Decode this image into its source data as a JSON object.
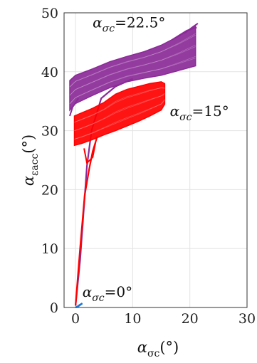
{
  "chart_data": {
    "type": "line",
    "title": "",
    "xlabel": {
      "greek": "α",
      "sub": "σc",
      "unit": "(°)"
    },
    "ylabel": {
      "greek": "α",
      "sub": "εacc",
      "unit": "(°)"
    },
    "xlim": [
      -2,
      30
    ],
    "ylim": [
      0,
      50
    ],
    "xticks": [
      "0",
      "10",
      "20",
      "30"
    ],
    "yticks": [
      "0",
      "10",
      "20",
      "30",
      "40",
      "50"
    ],
    "grid": true,
    "colors": {
      "purple": "#8b2a98",
      "red": "#ff0000",
      "blue": "#1f77d4"
    },
    "series": [
      {
        "annotation": {
          "greek": "α",
          "sub": "σc",
          "rest": "=22.5°",
          "x": 3.0,
          "y": 47.5
        },
        "color": "purple",
        "ramp": [
          [
            0,
            0.3
          ],
          [
            0.8,
            8
          ],
          [
            1.4,
            16
          ],
          [
            2.0,
            24
          ],
          [
            2.8,
            30
          ],
          [
            4.5,
            35.5
          ],
          [
            7,
            37.5
          ],
          [
            10,
            38.8
          ]
        ],
        "band": {
          "x": [
            -1.0,
            0,
            3,
            6,
            9,
            12,
            15,
            18,
            21
          ],
          "lower": [
            33.5,
            34.6,
            36.0,
            37.3,
            38.3,
            38.9,
            39.4,
            40.2,
            41.0
          ],
          "upper": [
            38.5,
            39.4,
            40.5,
            41.7,
            42.6,
            43.4,
            44.5,
            46.0,
            47.8
          ]
        },
        "extra_lines": [
          [
            [
              -1.0,
              32.5
            ],
            [
              -0.5,
              34.0
            ],
            [
              0.5,
              35.5
            ]
          ],
          [
            [
              19,
              46.5
            ],
            [
              20.5,
              47.6
            ],
            [
              21.4,
              48.2
            ]
          ],
          [
            [
              17,
              45.5
            ],
            [
              19.5,
              47.0
            ],
            [
              21.2,
              47.5
            ]
          ]
        ]
      },
      {
        "annotation": {
          "greek": "α",
          "sub": "σc",
          "rest": "=15°",
          "x": 16.5,
          "y": 32.5
        },
        "color": "red",
        "ramp": [
          [
            0,
            0.3
          ],
          [
            0.8,
            10
          ],
          [
            1.6,
            19
          ],
          [
            2.4,
            23.5
          ],
          [
            3.0,
            26.5
          ],
          [
            3.8,
            29
          ]
        ],
        "band": {
          "x": [
            -0.2,
            1,
            3,
            5,
            7,
            9,
            11,
            13,
            15,
            15.6
          ],
          "lower": [
            27.5,
            27.8,
            28.5,
            29.3,
            30.0,
            30.8,
            31.6,
            32.5,
            33.5,
            34.5
          ],
          "upper": [
            32.5,
            33.0,
            33.8,
            34.8,
            36.2,
            37.0,
            37.5,
            38.0,
            38.3,
            38.0
          ]
        },
        "extra_lines": [
          [
            [
              1.5,
              27
            ],
            [
              2.0,
              24.5
            ],
            [
              3.0,
              25.5
            ],
            [
              3.5,
              28
            ]
          ]
        ]
      },
      {
        "annotation": {
          "greek": "α",
          "sub": "σc",
          "rest": "=0°",
          "x": 1.2,
          "y": 1.8
        },
        "color": "blue",
        "points": [
          [
            0,
            0
          ],
          [
            0.4,
            0.2
          ],
          [
            0.8,
            0.45
          ],
          [
            1.2,
            0.7
          ],
          [
            0.6,
            0.35
          ],
          [
            1.0,
            0.55
          ],
          [
            0.3,
            0.1
          ]
        ]
      }
    ]
  }
}
